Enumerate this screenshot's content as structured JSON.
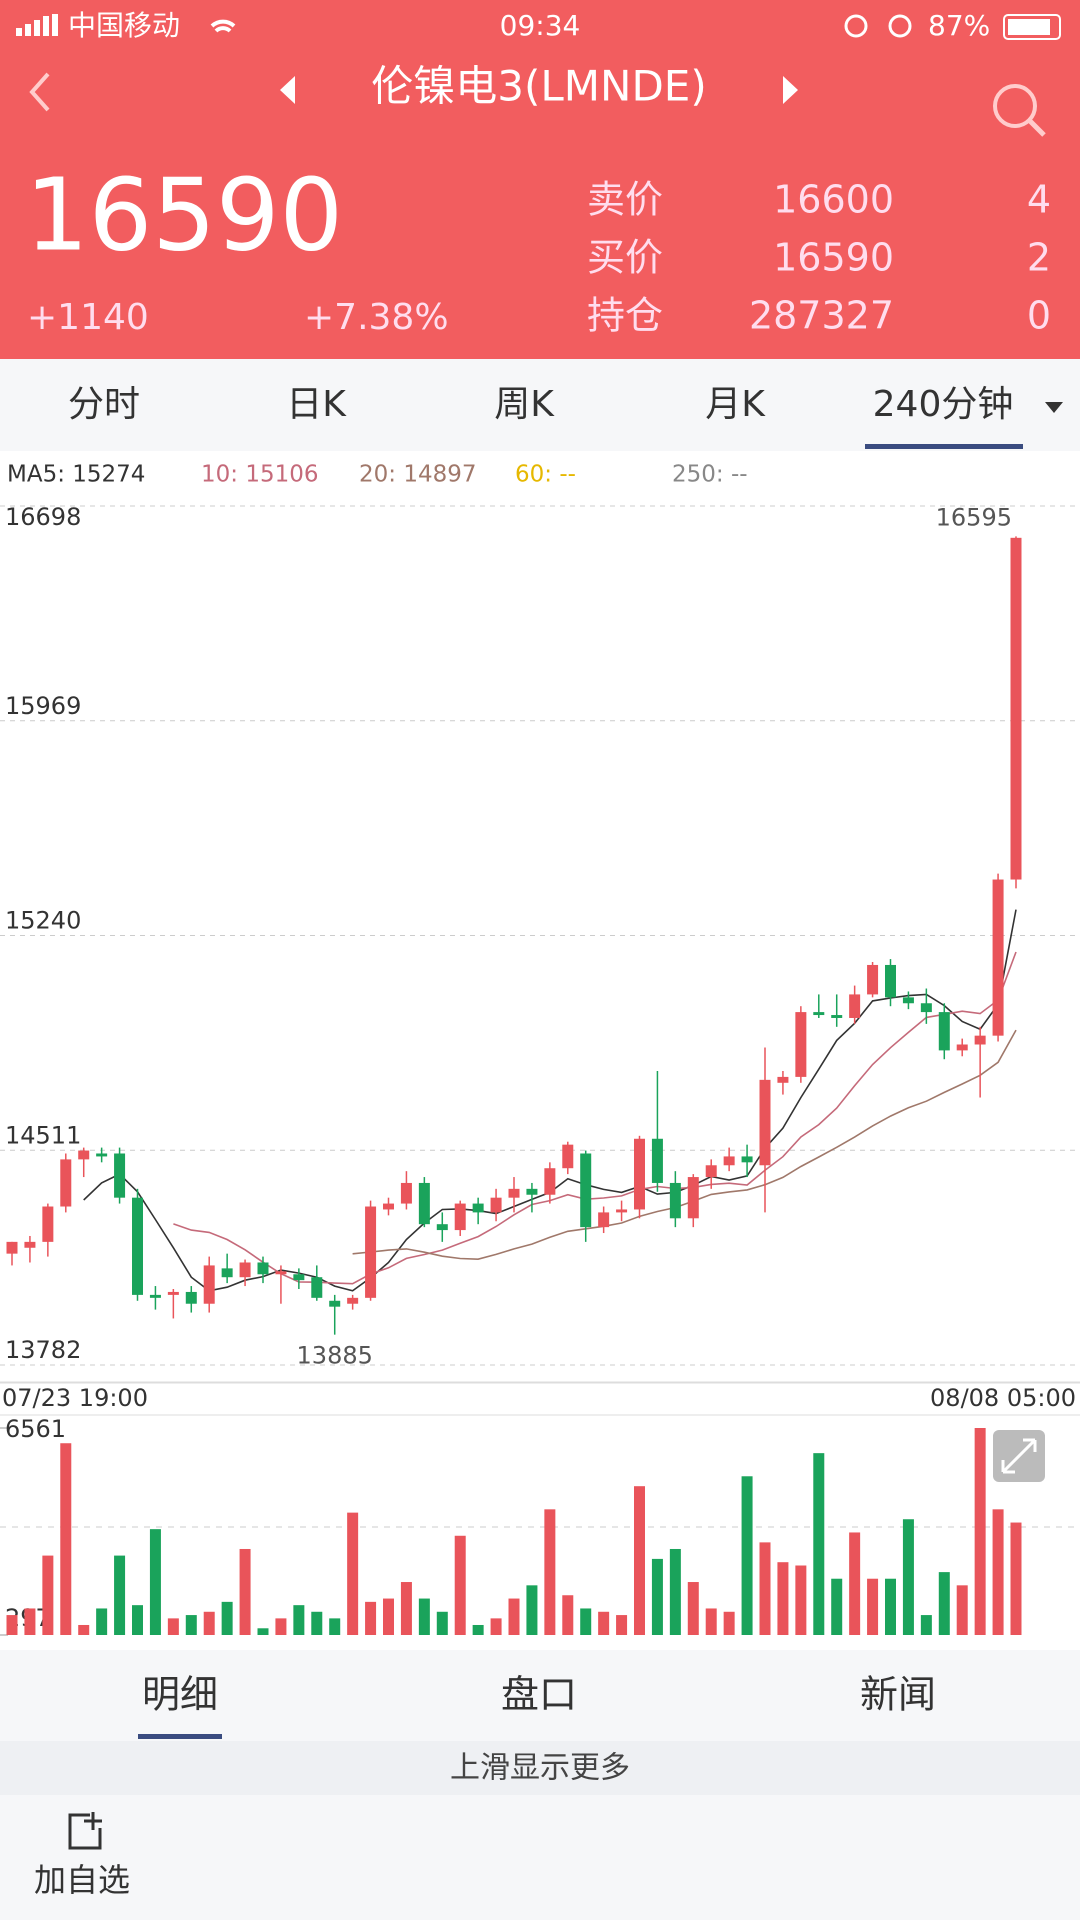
{
  "status_bar": {
    "carrier": "中国移动",
    "time": "09:34",
    "battery": "87%"
  },
  "header": {
    "title": "伦镍电3(LMNDE)",
    "price": 16590,
    "change": "+1140",
    "change_pct": "+7.38%",
    "quotes": [
      {
        "label": "卖价",
        "price": 16600,
        "qty": 4
      },
      {
        "label": "买价",
        "price": 16590,
        "qty": 2
      },
      {
        "label": "持仓",
        "price": 287327,
        "qty": 0
      }
    ]
  },
  "tabs": [
    "分时",
    "日K",
    "周K",
    "月K",
    "240分钟"
  ],
  "ma_legend": [
    "MA5: 15274",
    "10: 15106",
    "20: 14897",
    "60: --",
    "250: --"
  ],
  "chart_data": {
    "type": "candlestick",
    "categories": [
      "07/23 19:00",
      null,
      null,
      null,
      null,
      null,
      null,
      null,
      null,
      null,
      null,
      null,
      null,
      null,
      null,
      null,
      null,
      null,
      null,
      null,
      null,
      null,
      null,
      null,
      null,
      null,
      null,
      null,
      null,
      null,
      null,
      null,
      null,
      null,
      null,
      null,
      null,
      null,
      null,
      null,
      null,
      null,
      null,
      null,
      null,
      null,
      null,
      null,
      null,
      null,
      null,
      null,
      null,
      null,
      null,
      null,
      "08/08 05:00"
    ],
    "open": [
      14160,
      14180,
      14200,
      14320,
      14480,
      14500,
      14500,
      14350,
      14020,
      14020,
      14030,
      13990,
      14110,
      14080,
      14130,
      14090,
      14090,
      14080,
      14000,
      13990,
      14010,
      14310,
      14330,
      14400,
      14260,
      14240,
      14330,
      14300,
      14350,
      14380,
      14360,
      14450,
      14500,
      14250,
      14300,
      14310,
      14550,
      14400,
      14280,
      14420,
      14460,
      14490,
      14460,
      14740,
      14760,
      14980,
      14970,
      14960,
      15040,
      15140,
      15030,
      15010,
      14980,
      14850,
      14870,
      14900,
      15430
    ],
    "high": [
      14200,
      14220,
      14330,
      14500,
      14520,
      14520,
      14520,
      14380,
      14050,
      14040,
      14050,
      14150,
      14160,
      14140,
      14150,
      14120,
      14110,
      14120,
      14020,
      14020,
      14340,
      14350,
      14440,
      14420,
      14300,
      14340,
      14350,
      14380,
      14420,
      14400,
      14470,
      14540,
      14510,
      14320,
      14340,
      14560,
      14780,
      14440,
      14430,
      14480,
      14520,
      14530,
      14860,
      14780,
      15000,
      15040,
      15040,
      15070,
      15150,
      15160,
      15050,
      15060,
      15010,
      14890,
      14930,
      15450,
      16595
    ],
    "low": [
      14120,
      14130,
      14150,
      14300,
      14420,
      14470,
      14330,
      14000,
      13970,
      13940,
      13960,
      13960,
      14060,
      14050,
      14060,
      13990,
      14040,
      14000,
      13885,
      13970,
      14000,
      14290,
      14310,
      14250,
      14200,
      14220,
      14260,
      14270,
      14300,
      14300,
      14330,
      14430,
      14200,
      14230,
      14270,
      14280,
      14370,
      14250,
      14250,
      14380,
      14440,
      14420,
      14300,
      14700,
      14740,
      14960,
      14930,
      14940,
      15030,
      15000,
      14990,
      14940,
      14820,
      14830,
      14690,
      14880,
      15400
    ],
    "close": [
      14200,
      14200,
      14320,
      14480,
      14510,
      14490,
      14350,
      14020,
      14010,
      14030,
      13990,
      14120,
      14080,
      14130,
      14090,
      14100,
      14070,
      14010,
      13980,
      14010,
      14320,
      14330,
      14400,
      14260,
      14240,
      14330,
      14300,
      14350,
      14380,
      14360,
      14450,
      14530,
      14250,
      14300,
      14310,
      14550,
      14400,
      14280,
      14420,
      14460,
      14490,
      14470,
      14750,
      14760,
      14980,
      14970,
      14960,
      15040,
      15140,
      15030,
      15010,
      14980,
      14850,
      14870,
      14900,
      15430,
      16590
    ],
    "ylim": [
      13782,
      16698
    ],
    "yticks": [
      16698,
      15969,
      15240,
      14511,
      13782
    ],
    "high_label": 16595,
    "low_label": 13885,
    "up_color": "#e9545a",
    "down_color": "#1aa35b",
    "volume": {
      "values": [
        900,
        1100,
        2700,
        6100,
        600,
        1100,
        2700,
        1200,
        3500,
        800,
        900,
        1000,
        1300,
        2900,
        500,
        800,
        1200,
        1000,
        800,
        4000,
        1300,
        1400,
        1900,
        1400,
        1000,
        3300,
        600,
        800,
        1400,
        1800,
        4100,
        1500,
        1100,
        1000,
        900,
        4800,
        2600,
        2900,
        1900,
        1100,
        1000,
        5100,
        3100,
        2500,
        2400,
        5800,
        2000,
        3400,
        2000,
        2000,
        3800,
        900,
        2200,
        1800,
        6561,
        4100,
        3700
      ],
      "ylim": [
        297,
        6561
      ],
      "yticks": [
        6561,
        297
      ]
    }
  },
  "bottom_tabs": [
    "明细",
    "盘口",
    "新闻"
  ],
  "more": "上滑显示更多",
  "add": "加自选"
}
